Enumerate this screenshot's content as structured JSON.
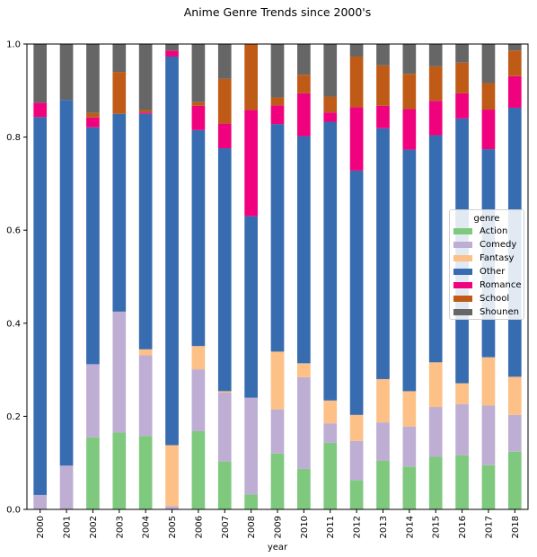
{
  "chart_data": {
    "type": "bar",
    "stacked": true,
    "title": "Anime Genre Trends since 2000's",
    "xlabel": "year",
    "ylabel": "",
    "ylim": [
      0,
      1.0
    ],
    "yticks": [
      "0.0",
      "0.2",
      "0.4",
      "0.6",
      "0.8",
      "1.0"
    ],
    "grid": false,
    "legend_position": "center-right",
    "legend_title": "genre",
    "categories": [
      "2000",
      "2001",
      "2002",
      "2003",
      "2004",
      "2005",
      "2006",
      "2007",
      "2008",
      "2009",
      "2010",
      "2011",
      "2012",
      "2013",
      "2014",
      "2015",
      "2016",
      "2017",
      "2018"
    ],
    "series": [
      {
        "name": "Action",
        "color": "#7fc97f",
        "values": [
          0,
          0,
          0.155,
          0.165,
          0.158,
          0,
          0.168,
          0.103,
          0.032,
          0.12,
          0.087,
          0.143,
          0.063,
          0.105,
          0.092,
          0.113,
          0.116,
          0.095,
          0.124
        ]
      },
      {
        "name": "Comedy",
        "color": "#beaed4",
        "values": [
          0.031,
          0.094,
          0.157,
          0.26,
          0.173,
          0.007,
          0.133,
          0.148,
          0.208,
          0.095,
          0.197,
          0.042,
          0.084,
          0.082,
          0.086,
          0.107,
          0.11,
          0.128,
          0.079
        ]
      },
      {
        "name": "Fantasy",
        "color": "#fdc086",
        "values": [
          0,
          0,
          0,
          0,
          0.013,
          0.131,
          0.05,
          0.003,
          0,
          0.124,
          0.03,
          0.049,
          0.056,
          0.093,
          0.076,
          0.096,
          0.045,
          0.104,
          0.082
        ]
      },
      {
        "name": "Other",
        "color": "#386cb0",
        "values": [
          0.812,
          0.786,
          0.509,
          0.425,
          0.506,
          0.835,
          0.464,
          0.522,
          0.39,
          0.489,
          0.488,
          0.599,
          0.525,
          0.539,
          0.519,
          0.488,
          0.569,
          0.447,
          0.578
        ]
      },
      {
        "name": "Romance",
        "color": "#f0027f",
        "values": [
          0.031,
          0,
          0.021,
          0,
          0.003,
          0.013,
          0.052,
          0.053,
          0.228,
          0.04,
          0.092,
          0.02,
          0.136,
          0.048,
          0.087,
          0.074,
          0.054,
          0.085,
          0.068
        ]
      },
      {
        "name": "School",
        "color": "#bf5b17",
        "values": [
          0,
          0,
          0.01,
          0.09,
          0.005,
          0,
          0.008,
          0.096,
          0.142,
          0.017,
          0.04,
          0.034,
          0.109,
          0.087,
          0.076,
          0.074,
          0.066,
          0.057,
          0.055
        ]
      },
      {
        "name": "Shounen",
        "color": "#666666",
        "values": [
          0.126,
          0.12,
          0.148,
          0.06,
          0.142,
          0.014,
          0.125,
          0.075,
          0,
          0.115,
          0.066,
          0.113,
          0.027,
          0.046,
          0.064,
          0.048,
          0.04,
          0.084,
          0.014
        ]
      }
    ]
  }
}
